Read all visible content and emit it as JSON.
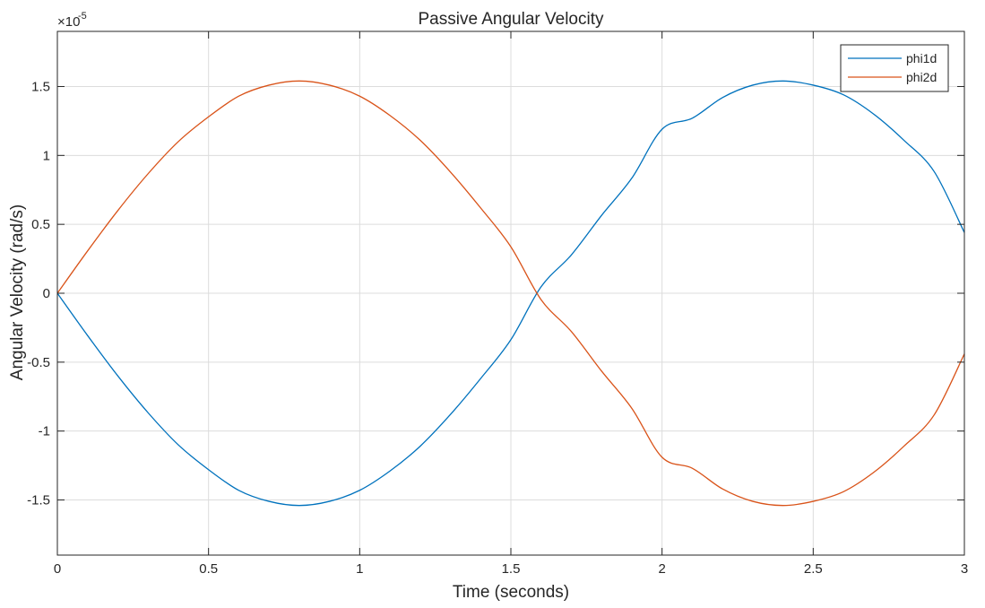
{
  "chart_data": {
    "type": "line",
    "title": "Passive Angular Velocity",
    "xlabel": "Time (seconds)",
    "ylabel": "Angular Velocity (rad/s)",
    "y_exponent_label": "×10",
    "y_exponent_power": "-5",
    "y_scale": 1e-05,
    "xlim": [
      0,
      3
    ],
    "ylim": [
      -1.9e-05,
      1.9e-05
    ],
    "x_ticks": [
      0,
      0.5,
      1,
      1.5,
      2,
      2.5,
      3
    ],
    "x_tick_labels": [
      "0",
      "0.5",
      "1",
      "1.5",
      "2",
      "2.5",
      "3"
    ],
    "y_ticks": [
      -1.5e-05,
      -1e-05,
      -5e-06,
      0,
      5e-06,
      1e-05,
      1.5e-05
    ],
    "y_tick_labels": [
      "-1.5",
      "-1",
      "-0.5",
      "0",
      "0.5",
      "1",
      "1.5"
    ],
    "grid": true,
    "legend_position": "top-right",
    "series": [
      {
        "name": "phi1d",
        "color": "#0072BD",
        "x": [
          0,
          0.1,
          0.2,
          0.3,
          0.4,
          0.5,
          0.6,
          0.7,
          0.8,
          0.9,
          1.0,
          1.1,
          1.2,
          1.3,
          1.4,
          1.5,
          1.6,
          1.7,
          1.8,
          1.9,
          2.0,
          2.1,
          2.2,
          2.3,
          2.4,
          2.5,
          2.6,
          2.7,
          2.8,
          2.9,
          3.0
        ],
        "y": [
          0,
          -3.07e-06,
          -6e-06,
          -8.67e-06,
          -1.1e-05,
          -1.28e-05,
          -1.43e-05,
          -1.51e-05,
          -1.54e-05,
          -1.51e-05,
          -1.43e-05,
          -1.29e-05,
          -1.11e-05,
          -8.8e-06,
          -6.19e-06,
          -3.37e-06,
          4.7e-07,
          2.78e-06,
          5.65e-06,
          8.35e-06,
          1.19e-05,
          1.27e-05,
          1.42e-05,
          1.51e-05,
          1.54e-05,
          1.51e-05,
          1.44e-05,
          1.3e-05,
          1.11e-05,
          8.83e-06,
          4.4e-06
        ]
      },
      {
        "name": "phi2d",
        "color": "#D95319",
        "x": [
          0,
          0.1,
          0.2,
          0.3,
          0.4,
          0.5,
          0.6,
          0.7,
          0.8,
          0.9,
          1.0,
          1.1,
          1.2,
          1.3,
          1.4,
          1.5,
          1.6,
          1.7,
          1.8,
          1.9,
          2.0,
          2.1,
          2.2,
          2.3,
          2.4,
          2.5,
          2.6,
          2.7,
          2.8,
          2.9,
          3.0
        ],
        "y": [
          0,
          3.07e-06,
          6e-06,
          8.67e-06,
          1.1e-05,
          1.28e-05,
          1.43e-05,
          1.51e-05,
          1.54e-05,
          1.51e-05,
          1.43e-05,
          1.29e-05,
          1.11e-05,
          8.8e-06,
          6.19e-06,
          3.37e-06,
          -4.7e-07,
          -2.78e-06,
          -5.65e-06,
          -8.35e-06,
          -1.19e-05,
          -1.27e-05,
          -1.42e-05,
          -1.51e-05,
          -1.54e-05,
          -1.51e-05,
          -1.44e-05,
          -1.3e-05,
          -1.11e-05,
          -8.83e-06,
          -4.4e-06
        ]
      }
    ]
  }
}
